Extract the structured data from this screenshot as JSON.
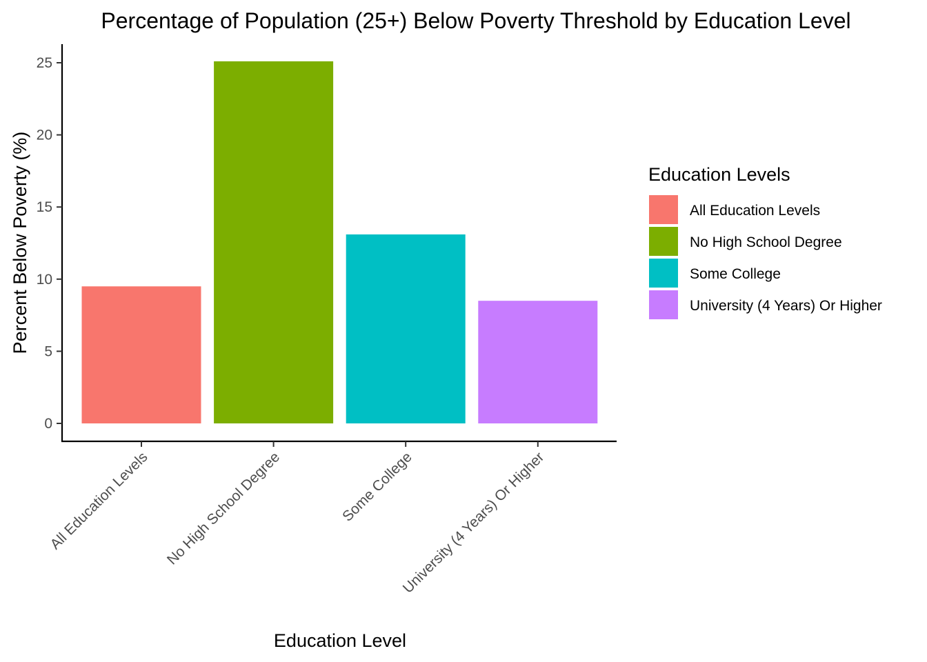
{
  "chart_data": {
    "type": "bar",
    "title": "Percentage of Population (25+) Below Poverty Threshold by Education Level",
    "xlabel": "Education Level",
    "ylabel": "Percent Below Poverty (%)",
    "categories": [
      "All Education Levels",
      "No High School Degree",
      "Some College",
      "University (4 Years) Or Higher"
    ],
    "values": [
      9.5,
      25.1,
      13.1,
      8.5
    ],
    "colors": [
      "#F8766D",
      "#7CAE00",
      "#00BFC4",
      "#C77CFF"
    ],
    "ylim": [
      0,
      25
    ],
    "yticks": [
      0,
      5,
      10,
      15,
      20,
      25
    ],
    "yticks_labels": [
      "0",
      "5",
      "10",
      "15",
      "20",
      "25"
    ],
    "grid": false,
    "legend": {
      "title": "Education Levels",
      "placement": "right",
      "entries": [
        "All Education Levels",
        "No High School Degree",
        "Some College",
        "University (4 Years) Or Higher"
      ]
    }
  }
}
